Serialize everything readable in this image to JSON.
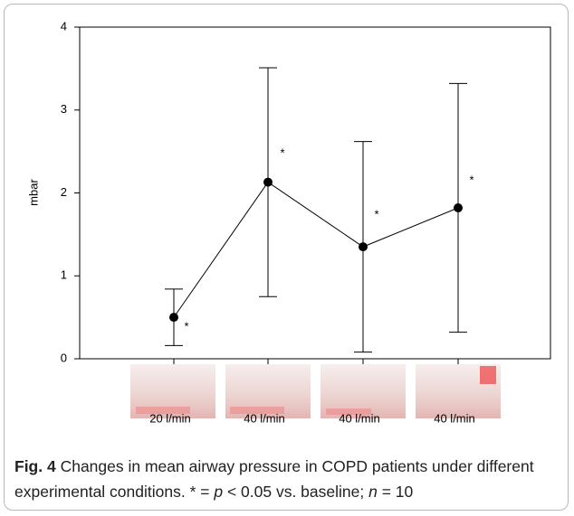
{
  "chart_data": {
    "type": "line",
    "y_label": "mbar",
    "categories": [
      "20 l/min",
      "40 l/min",
      "40 l/min",
      "40 l/min"
    ],
    "series": [
      {
        "color": "#000000",
        "values": [
          0.5,
          2.13,
          1.35,
          1.82
        ],
        "errors": [
          0.34,
          1.38,
          1.27,
          1.5
        ]
      }
    ],
    "annotations": [
      "*",
      "*",
      "*",
      "*"
    ],
    "ylim": [
      0,
      4
    ],
    "yticks": [
      0,
      1,
      2,
      3,
      4
    ]
  },
  "caption": {
    "label": "Fig. 4",
    "segments": [
      "Changes in mean airway pressure in COPD patients under different experimental conditions. * = ",
      "p",
      " < 0.05 vs. baseline; ",
      "n",
      " = 10"
    ]
  }
}
